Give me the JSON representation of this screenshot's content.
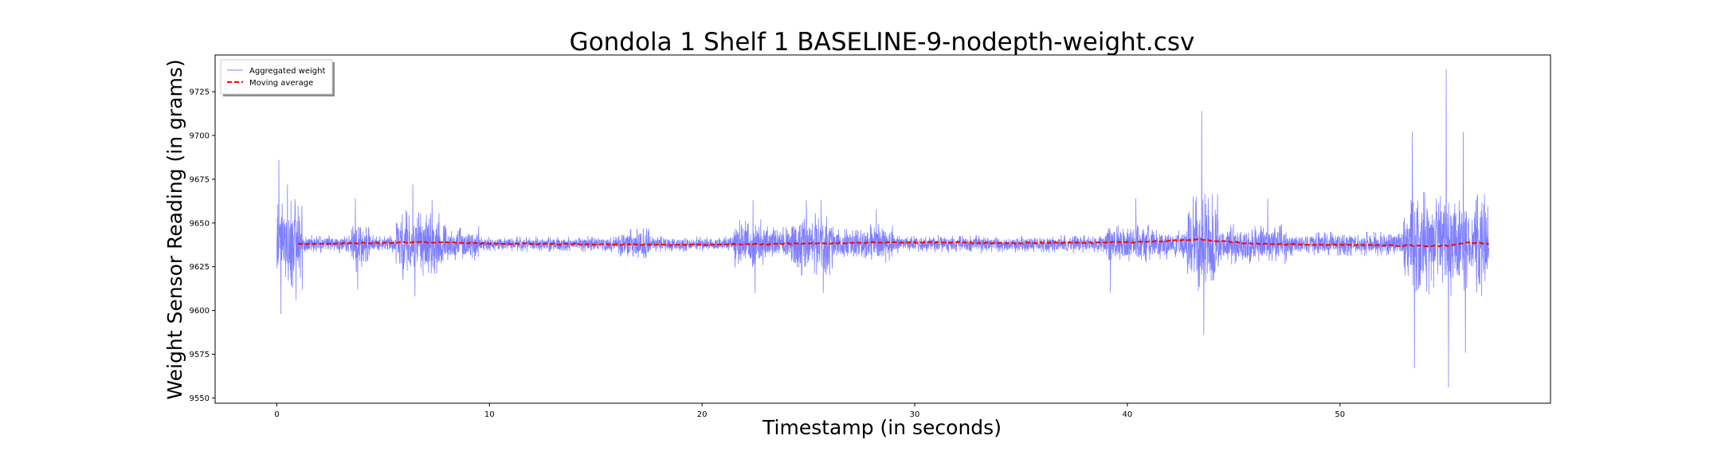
{
  "chart_data": {
    "type": "line",
    "title": "Gondola 1 Shelf 1 BASELINE-9-nodepth-weight.csv",
    "xlabel": "Timestamp (in seconds)",
    "ylabel": "Weight Sensor Reading (in grams)",
    "xlim": [
      -2.9,
      59.9
    ],
    "ylim": [
      9547,
      9746
    ],
    "xticks": [
      0,
      10,
      20,
      30,
      40,
      50
    ],
    "yticks": [
      9550,
      9575,
      9600,
      9625,
      9650,
      9675,
      9700,
      9725
    ],
    "legend_position": "upper-left",
    "grid": false,
    "series": [
      {
        "name": "Aggregated weight",
        "style": "line",
        "color": "#0000ff",
        "opacity": 0.5,
        "x_range": [
          0,
          57
        ],
        "baseline": 9638,
        "peaks": [
          {
            "x": 0.1,
            "y": 9686
          },
          {
            "x": 0.2,
            "y": 9598
          },
          {
            "x": 0.5,
            "y": 9672
          },
          {
            "x": 0.9,
            "y": 9606
          },
          {
            "x": 3.7,
            "y": 9664
          },
          {
            "x": 3.8,
            "y": 9612
          },
          {
            "x": 6.4,
            "y": 9672
          },
          {
            "x": 6.5,
            "y": 9608
          },
          {
            "x": 7.3,
            "y": 9663
          },
          {
            "x": 22.4,
            "y": 9663
          },
          {
            "x": 22.5,
            "y": 9610
          },
          {
            "x": 24.9,
            "y": 9663
          },
          {
            "x": 25.6,
            "y": 9663
          },
          {
            "x": 25.7,
            "y": 9610
          },
          {
            "x": 28.2,
            "y": 9658
          },
          {
            "x": 39.2,
            "y": 9610
          },
          {
            "x": 40.4,
            "y": 9664
          },
          {
            "x": 43.5,
            "y": 9714
          },
          {
            "x": 43.6,
            "y": 9586
          },
          {
            "x": 46.6,
            "y": 9664
          },
          {
            "x": 53.4,
            "y": 9702
          },
          {
            "x": 53.5,
            "y": 9567
          },
          {
            "x": 55.0,
            "y": 9738
          },
          {
            "x": 55.1,
            "y": 9556
          },
          {
            "x": 55.8,
            "y": 9702
          },
          {
            "x": 55.9,
            "y": 9576
          }
        ]
      },
      {
        "name": "Moving average",
        "style": "dashed",
        "color": "#ff0000",
        "x_range": [
          1,
          57
        ],
        "values": [
          {
            "x": 1,
            "y": 9638.0
          },
          {
            "x": 7,
            "y": 9639.0
          },
          {
            "x": 12,
            "y": 9638.0
          },
          {
            "x": 20,
            "y": 9637.5
          },
          {
            "x": 26,
            "y": 9638.5
          },
          {
            "x": 30,
            "y": 9639.0
          },
          {
            "x": 35,
            "y": 9638.5
          },
          {
            "x": 40,
            "y": 9639.0
          },
          {
            "x": 43.5,
            "y": 9640.5
          },
          {
            "x": 46,
            "y": 9638.0
          },
          {
            "x": 50,
            "y": 9637.5
          },
          {
            "x": 53,
            "y": 9637.0
          },
          {
            "x": 55,
            "y": 9637.0
          },
          {
            "x": 56,
            "y": 9639.0
          },
          {
            "x": 57,
            "y": 9638.0
          }
        ]
      }
    ]
  }
}
